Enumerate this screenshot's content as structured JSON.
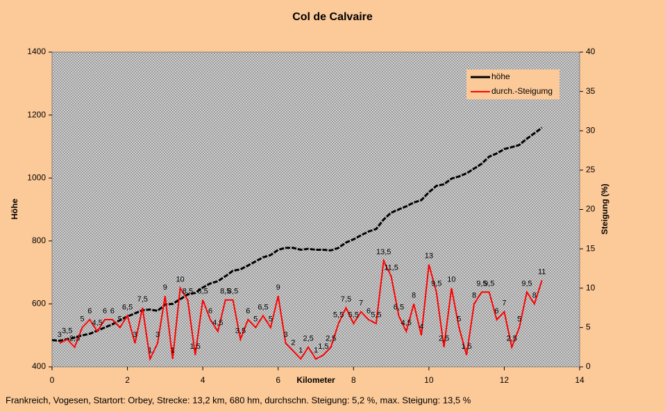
{
  "chart_data": {
    "type": "line",
    "title": "Col de Calvaire",
    "xlabel": "Kilometer",
    "ylabel": "Höhe",
    "y2label": "Steigung (%)",
    "footnote": "Frankreich, Vogesen, Startort: Orbey, Strecke: 13,2 km, 680 hm, durchschn. Steigung: 5,2 %, max. Steigung: 13,5 %",
    "xlim": [
      0,
      14
    ],
    "xticks": [
      0,
      2,
      4,
      6,
      8,
      10,
      12,
      14
    ],
    "ylim": [
      400,
      1400
    ],
    "yticks": [
      400,
      600,
      800,
      1000,
      1200,
      1400
    ],
    "y2lim": [
      0,
      40
    ],
    "y2ticks": [
      0,
      5,
      10,
      15,
      20,
      25,
      30,
      35,
      40
    ],
    "legend": "top-right",
    "series": [
      {
        "name": "höhe",
        "color": "#000000",
        "x": [
          0,
          0.2,
          0.4,
          0.6,
          0.8,
          1,
          1.2,
          1.4,
          1.6,
          1.8,
          2,
          2.2,
          2.4,
          2.6,
          2.8,
          3,
          3.2,
          3.4,
          3.6,
          3.8,
          4,
          4.2,
          4.4,
          4.6,
          4.8,
          5,
          5.2,
          5.4,
          5.6,
          5.8,
          6,
          6.2,
          6.4,
          6.6,
          6.8,
          7,
          7.2,
          7.4,
          7.6,
          7.8,
          8,
          8.2,
          8.4,
          8.6,
          8.8,
          9,
          9.2,
          9.4,
          9.6,
          9.8,
          10,
          10.2,
          10.4,
          10.6,
          10.8,
          11,
          11.2,
          11.4,
          11.6,
          11.8,
          12,
          12.2,
          12.4,
          12.6,
          12.8,
          13
        ],
        "values": [
          485,
          483,
          488,
          493,
          500,
          505,
          515,
          525,
          535,
          548,
          560,
          570,
          580,
          582,
          578,
          598,
          600,
          615,
          630,
          635,
          652,
          665,
          672,
          688,
          705,
          710,
          722,
          735,
          748,
          755,
          772,
          778,
          778,
          772,
          775,
          772,
          772,
          770,
          778,
          795,
          805,
          818,
          830,
          838,
          868,
          890,
          900,
          910,
          922,
          930,
          955,
          975,
          980,
          998,
          1005,
          1015,
          1030,
          1045,
          1068,
          1078,
          1092,
          1098,
          1105,
          1125,
          1142,
          1160
        ]
      },
      {
        "name": "durch.-Steigumg",
        "color": "#ff0000",
        "axis": "y2",
        "x": [
          0.2,
          0.4,
          0.6,
          0.8,
          1,
          1.2,
          1.4,
          1.6,
          1.8,
          2,
          2.2,
          2.4,
          2.6,
          2.8,
          3,
          3.2,
          3.4,
          3.6,
          3.8,
          4,
          4.2,
          4.4,
          4.6,
          4.8,
          5,
          5.2,
          5.4,
          5.6,
          5.8,
          6,
          6.2,
          6.4,
          6.6,
          6.8,
          7,
          7.2,
          7.4,
          7.6,
          7.8,
          8,
          8.2,
          8.4,
          8.6,
          8.8,
          9,
          9.2,
          9.4,
          9.6,
          9.8,
          10,
          10.2,
          10.4,
          10.6,
          10.8,
          11,
          11.2,
          11.4,
          11.6,
          11.8,
          12,
          12.2,
          12.4,
          12.6,
          12.8,
          13
        ],
        "values": [
          3,
          3.5,
          2.5,
          5,
          6,
          4.5,
          6,
          6,
          5,
          6.5,
          3,
          7.5,
          1,
          3,
          9,
          1,
          10,
          8.5,
          1.5,
          8.5,
          6,
          4.5,
          8.5,
          8.5,
          3.5,
          6,
          5,
          6.5,
          5,
          9,
          3,
          2,
          1,
          2.5,
          1,
          1.5,
          2.5,
          5.5,
          7.5,
          5.5,
          7,
          6,
          5.5,
          13.5,
          11.5,
          6.5,
          4.5,
          8,
          4,
          13,
          9.5,
          2.5,
          10,
          5,
          1.5,
          8,
          9.5,
          9.5,
          6,
          7,
          2.5,
          5,
          9.5,
          8,
          11
        ],
        "value_labels": [
          "3",
          "3,5",
          "2,5",
          "5",
          "6",
          "4,5",
          "6",
          "6",
          "5",
          "6,5",
          "3",
          "7,5",
          "1",
          "3",
          "9",
          "1",
          "10",
          "8,5",
          "1,5",
          "8,5",
          "6",
          "4,5",
          "8,5",
          "8,5",
          "3,5",
          "6",
          "5",
          "6,5",
          "5",
          "9",
          "3",
          "2",
          "1",
          "2,5",
          "1",
          "1,5",
          "2,5",
          "5,5",
          "7,5",
          "5,5",
          "7",
          "6",
          "5,5",
          "13,5",
          "11,5",
          "6,5",
          "4,5",
          "8",
          "4",
          "13",
          "9,5",
          "2,5",
          "10",
          "5",
          "1,5",
          "8",
          "9,5",
          "9,5",
          "6",
          "7",
          "2,5",
          "5",
          "9,5",
          "8",
          "11"
        ]
      }
    ]
  }
}
